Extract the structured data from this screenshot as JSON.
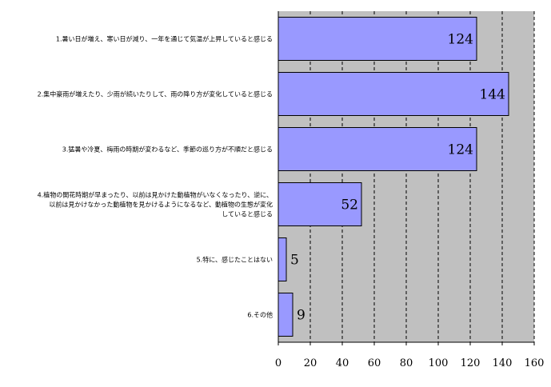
{
  "chart_data": {
    "type": "bar",
    "orientation": "horizontal",
    "categories": [
      [
        "1.暑い日が増え、寒い日が減り、一年を通じて気温が上昇していると感じる"
      ],
      [
        "2.集中豪雨が増えたり、少雨が続いたりして、雨の降り方が変化していると感じる"
      ],
      [
        "3.猛暑や冷夏、梅雨の時期が変わるなど、季節の巡り方が不順だと感じる"
      ],
      [
        "4.植物の開花時期が早まったり、以前は見かけた動植物がいなくなったり、逆に、",
        "以前は見かけなかった動植物を見かけるようになるなど、動植物の生態が変化",
        "していると感じる"
      ],
      [
        "5.特に、感じたことはない"
      ],
      [
        "6.その他"
      ]
    ],
    "values": [
      124,
      144,
      124,
      52,
      5,
      9
    ],
    "xlim": [
      0,
      160
    ],
    "xticks": [
      0,
      20,
      40,
      60,
      80,
      100,
      120,
      140,
      160
    ],
    "grid": "vertical dashed",
    "legend": "none",
    "colors": {
      "bar_fill": "#9999ff",
      "bar_stroke": "#000000",
      "plot_background": "#c0c0c0",
      "grid": "#000000"
    }
  }
}
